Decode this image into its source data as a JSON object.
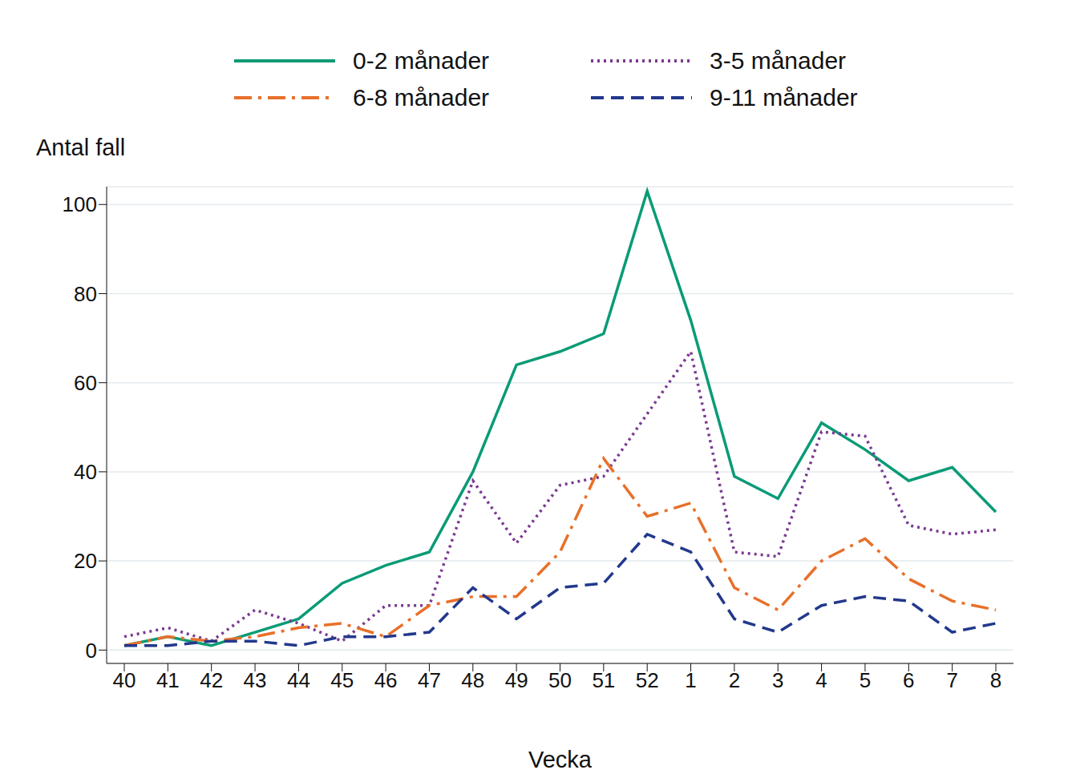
{
  "chart_data": {
    "type": "line",
    "x_label": "Vecka",
    "y_label": "Antal fall",
    "categories": [
      "40",
      "41",
      "42",
      "43",
      "44",
      "45",
      "46",
      "47",
      "48",
      "49",
      "50",
      "51",
      "52",
      "1",
      "2",
      "3",
      "4",
      "5",
      "6",
      "7",
      "8"
    ],
    "series": [
      {
        "name": "0-2 månader",
        "color": "#0a9b76",
        "line_style": "solid",
        "values": [
          1,
          3,
          1,
          4,
          7,
          15,
          19,
          22,
          40,
          64,
          67,
          71,
          103,
          74,
          39,
          34,
          51,
          45,
          38,
          41,
          31
        ]
      },
      {
        "name": "3-5 månader",
        "color": "#7b3a91",
        "line_style": "dotted",
        "values": [
          3,
          5,
          2,
          9,
          6,
          2,
          10,
          10,
          38,
          24,
          37,
          39,
          53,
          67,
          22,
          21,
          49,
          48,
          28,
          26,
          27
        ]
      },
      {
        "name": "6-8 månader",
        "color": "#e8702a",
        "line_style": "dashdot",
        "values": [
          1,
          3,
          2,
          3,
          5,
          6,
          3,
          10,
          12,
          12,
          22,
          43,
          30,
          33,
          14,
          9,
          20,
          25,
          16,
          11,
          9
        ]
      },
      {
        "name": "9-11 månader",
        "color": "#22388c",
        "line_style": "dashed",
        "values": [
          1,
          1,
          2,
          2,
          1,
          3,
          3,
          4,
          14,
          7,
          14,
          15,
          26,
          22,
          7,
          4,
          10,
          12,
          11,
          4,
          6
        ]
      }
    ],
    "ylim": [
      -3,
      104
    ],
    "yticks": [
      0,
      20,
      40,
      60,
      80,
      100
    ],
    "grid": true
  }
}
